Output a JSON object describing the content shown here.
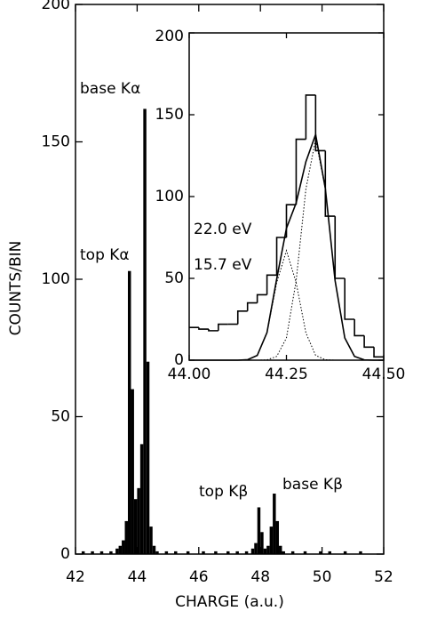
{
  "chart_data": [
    {
      "type": "histogram",
      "xlabel": "CHARGE (a.u.)",
      "ylabel": "COUNTS/BIN",
      "bins": [
        42.0,
        42.1,
        42.2,
        42.3,
        42.4,
        42.5,
        42.6,
        42.7,
        42.8,
        42.9,
        43.0,
        43.1,
        43.2,
        43.3,
        43.4,
        43.5,
        43.6,
        43.7,
        43.8,
        43.9,
        44.0,
        44.1,
        44.2,
        44.3,
        44.4,
        44.5,
        44.6,
        44.7,
        44.8,
        44.9,
        45.0,
        45.1,
        45.2,
        45.3,
        45.4,
        45.5,
        45.6,
        45.7,
        45.8,
        45.9,
        46.0,
        46.1,
        46.2,
        46.3,
        46.4,
        46.5,
        46.6,
        46.7,
        46.8,
        46.9,
        47.0,
        47.1,
        47.2,
        47.3,
        47.4,
        47.5,
        47.6,
        47.7,
        47.8,
        47.9,
        48.0,
        48.1,
        48.2,
        48.3,
        48.4,
        48.5,
        48.6,
        48.7,
        48.8,
        48.9,
        49.0,
        49.1,
        49.2,
        49.3,
        49.4,
        49.5,
        49.6,
        49.7,
        49.8,
        49.9,
        50.0,
        50.1,
        50.2,
        50.3,
        50.4,
        50.5,
        50.6,
        50.7,
        50.8,
        50.9,
        51.0,
        51.1,
        51.2,
        51.3,
        51.4,
        51.5,
        51.6,
        51.7,
        51.8,
        51.9,
        52.0
      ],
      "counts": [
        0,
        0,
        1,
        0,
        0,
        1,
        0,
        0,
        1,
        0,
        0,
        1,
        0,
        2,
        3,
        5,
        12,
        103,
        60,
        20,
        24,
        40,
        162,
        70,
        10,
        3,
        1,
        0,
        0,
        1,
        0,
        0,
        1,
        0,
        0,
        0,
        1,
        0,
        0,
        0,
        0,
        1,
        0,
        0,
        0,
        1,
        0,
        0,
        0,
        1,
        0,
        0,
        1,
        0,
        0,
        1,
        0,
        2,
        4,
        17,
        8,
        2,
        3,
        10,
        22,
        12,
        3,
        1,
        0,
        0,
        1,
        0,
        0,
        0,
        1,
        0,
        0,
        0,
        0,
        1,
        0,
        0,
        1,
        0,
        0,
        0,
        0,
        1,
        0,
        0,
        0,
        0,
        1,
        0,
        0,
        0,
        0,
        0,
        0,
        0
      ],
      "color": "#000000",
      "xlim": [
        42,
        52
      ],
      "xticks": [
        42,
        44,
        46,
        48,
        50,
        52
      ],
      "ylim": [
        0,
        200
      ],
      "yticks": [
        0,
        50,
        100,
        150,
        200
      ],
      "annotations": [
        "base Kα",
        "top Kα",
        "top Kβ",
        "base Kβ"
      ]
    },
    {
      "type": "histogram",
      "style": "step",
      "bins": [
        44.0,
        44.025,
        44.05,
        44.075,
        44.1,
        44.125,
        44.15,
        44.175,
        44.2,
        44.225,
        44.25,
        44.275,
        44.3,
        44.325,
        44.35,
        44.375,
        44.4,
        44.425,
        44.45,
        44.475,
        44.5
      ],
      "counts": [
        20,
        19,
        18,
        22,
        22,
        30,
        35,
        40,
        52,
        75,
        95,
        135,
        162,
        128,
        88,
        50,
        25,
        15,
        8,
        2
      ],
      "color": "#000000",
      "x": [
        44.0,
        44.025,
        44.05,
        44.075,
        44.1,
        44.125,
        44.15,
        44.175,
        44.2,
        44.225,
        44.25,
        44.275,
        44.3,
        44.325,
        44.35,
        44.375,
        44.4,
        44.425,
        44.45,
        44.475,
        44.5
      ],
      "series": [
        {
          "dash": false,
          "values": [
            0,
            0,
            0,
            0,
            0,
            0,
            0.3,
            2.9,
            16.9,
            49.7,
            80.6,
            96.1,
            121.3,
            137.9,
            104.9,
            48.7,
            13.6,
            2.3,
            0.2,
            0,
            0
          ]
        },
        {
          "dash": true,
          "values": [
            0,
            0,
            0,
            0,
            0,
            0,
            0.3,
            2.9,
            16.7,
            47.4,
            67,
            47.4,
            16.7,
            2.9,
            0.3,
            0,
            0,
            0,
            0,
            0,
            0
          ]
        },
        {
          "dash": true,
          "values": [
            0,
            0,
            0,
            0,
            0,
            0,
            0,
            0,
            0.2,
            2.3,
            13.6,
            48.7,
            104.6,
            135,
            104.6,
            48.7,
            13.6,
            2.3,
            0.2,
            0,
            0
          ]
        }
      ],
      "xlim": [
        44.0,
        44.5
      ],
      "xticks": [
        {
          "value": 44.0,
          "label": "44.00"
        },
        {
          "value": 44.25,
          "label": "44.25"
        },
        {
          "value": 44.5,
          "label": "44.50"
        }
      ],
      "ylim": [
        0,
        200
      ],
      "yticks": [
        0,
        50,
        100,
        150,
        200
      ],
      "annotations": [
        "22.0 eV",
        "15.7 eV"
      ]
    }
  ]
}
